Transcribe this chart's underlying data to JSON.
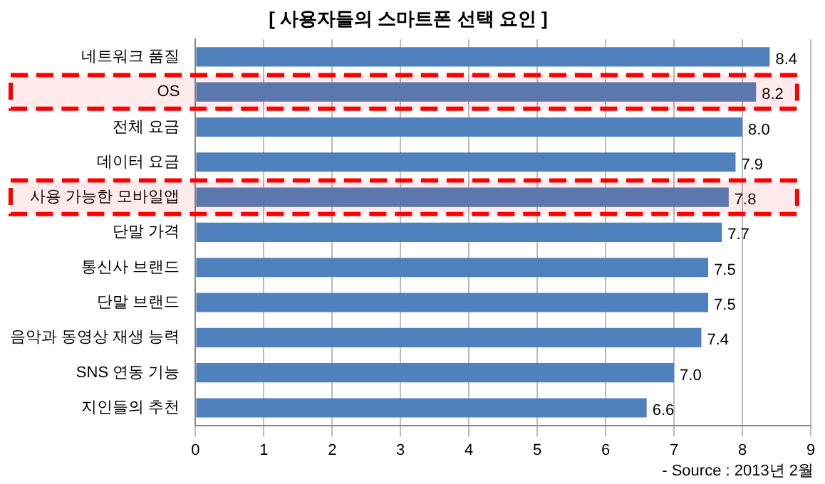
{
  "chart_data": {
    "type": "bar",
    "orientation": "horizontal",
    "title": "[ 사용자들의 스마트폰 선택 요인 ]",
    "categories": [
      "네트워크 품질",
      "OS",
      "전체 요금",
      "데이터 요금",
      "사용 가능한 모바일앱",
      "단말 가격",
      "통신사 브랜드",
      "단말 브랜드",
      "음악과 동영상 재생 능력",
      "SNS 연동 기능",
      "지인들의 추천"
    ],
    "values": [
      8.4,
      8.2,
      8.0,
      7.9,
      7.8,
      7.7,
      7.5,
      7.5,
      7.4,
      7.0,
      6.6
    ],
    "value_labels": [
      "8.4",
      "8.2",
      "8.0",
      "7.9",
      "7.8",
      "7.7",
      "7.5",
      "7.5",
      "7.4",
      "7.0",
      "6.6"
    ],
    "color": "#4f81bd",
    "xlim": [
      0,
      9
    ],
    "xticks": [
      0,
      1,
      2,
      3,
      4,
      5,
      6,
      7,
      8,
      9
    ],
    "grid": "x",
    "legend": false,
    "bands": [
      {
        "axis": "y",
        "from": "OS",
        "to": "OS",
        "color": "#ff0000"
      },
      {
        "axis": "y",
        "from": "사용 가능한 모바일앱",
        "to": "사용 가능한 모바일앱",
        "color": "#ff0000"
      }
    ],
    "annotations": [
      "- Source : 2013년 2월"
    ]
  }
}
